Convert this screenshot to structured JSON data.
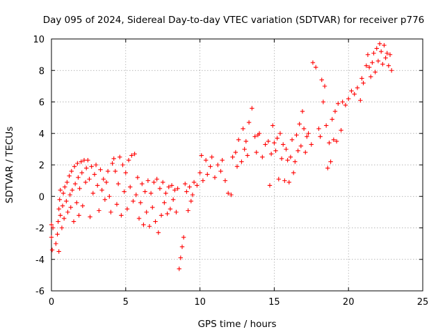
{
  "chart_data": {
    "type": "scatter",
    "title": "Day 095 of 2024, Sidereal Day-to-day VTEC variation (SDTVAR) for receiver p776",
    "xlabel": "GPS time / hours",
    "ylabel": "SDTVAR / TECUs",
    "xlim": [
      0,
      25
    ],
    "ylim": [
      -6,
      10
    ],
    "x_ticks": [
      0,
      5,
      10,
      15,
      20,
      25
    ],
    "y_ticks": [
      -6,
      -4,
      -2,
      0,
      2,
      4,
      6,
      8,
      10
    ],
    "x_tick_labels": [
      "0",
      "5",
      "10",
      "15",
      "20",
      "25"
    ],
    "y_tick_labels": [
      "-6",
      "-4",
      "-2",
      "0",
      "2",
      "4",
      "6",
      "8",
      "10"
    ],
    "grid": true,
    "marker": "plus",
    "color": "#ff0000",
    "series": [
      {
        "points": [
          [
            0.0,
            -1.8
          ],
          [
            0.0,
            -2.6
          ],
          [
            0.05,
            -3.4
          ],
          [
            0.1,
            -2.0
          ],
          [
            0.3,
            -3.0
          ],
          [
            0.4,
            -2.4
          ],
          [
            0.5,
            -3.5
          ],
          [
            0.45,
            -1.6
          ],
          [
            0.5,
            -0.8
          ],
          [
            0.55,
            -0.2
          ],
          [
            0.6,
            -1.2
          ],
          [
            0.6,
            0.4
          ],
          [
            0.7,
            -2.0
          ],
          [
            0.75,
            -0.6
          ],
          [
            0.8,
            0.2
          ],
          [
            0.85,
            -1.4
          ],
          [
            0.9,
            0.6
          ],
          [
            1.0,
            -0.3
          ],
          [
            1.05,
            0.9
          ],
          [
            1.1,
            -1.0
          ],
          [
            1.2,
            1.3
          ],
          [
            1.25,
            0.1
          ],
          [
            1.3,
            -0.7
          ],
          [
            1.35,
            1.6
          ],
          [
            1.4,
            0.4
          ],
          [
            1.5,
            -1.6
          ],
          [
            1.55,
            1.9
          ],
          [
            1.6,
            0.8
          ],
          [
            1.7,
            -0.4
          ],
          [
            1.75,
            2.1
          ],
          [
            1.8,
            1.2
          ],
          [
            1.85,
            -1.2
          ],
          [
            1.9,
            0.5
          ],
          [
            2.0,
            2.2
          ],
          [
            2.05,
            1.5
          ],
          [
            2.1,
            -0.6
          ],
          [
            2.2,
            2.3
          ],
          [
            2.3,
            0.9
          ],
          [
            2.35,
            1.8
          ],
          [
            2.45,
            2.3
          ],
          [
            2.55,
            1.1
          ],
          [
            2.6,
            -1.3
          ],
          [
            2.7,
            1.9
          ],
          [
            2.8,
            0.2
          ],
          [
            2.9,
            1.4
          ],
          [
            3.0,
            2.0
          ],
          [
            3.1,
            0.7
          ],
          [
            3.2,
            -0.9
          ],
          [
            3.3,
            1.7
          ],
          [
            3.4,
            0.4
          ],
          [
            3.5,
            1.1
          ],
          [
            3.6,
            -0.2
          ],
          [
            3.7,
            0.9
          ],
          [
            3.8,
            1.6
          ],
          [
            3.9,
            0.0
          ],
          [
            4.0,
            -1.0
          ],
          [
            4.1,
            2.1
          ],
          [
            4.2,
            2.4
          ],
          [
            4.3,
            1.6
          ],
          [
            4.4,
            -0.5
          ],
          [
            4.5,
            0.8
          ],
          [
            4.6,
            2.5
          ],
          [
            4.7,
            -1.2
          ],
          [
            4.8,
            2.0
          ],
          [
            4.9,
            0.3
          ],
          [
            5.0,
            1.5
          ],
          [
            5.1,
            -0.8
          ],
          [
            5.2,
            2.3
          ],
          [
            5.3,
            0.6
          ],
          [
            5.4,
            2.6
          ],
          [
            5.5,
            -0.3
          ],
          [
            5.6,
            2.7
          ],
          [
            5.7,
            0.1
          ],
          [
            5.8,
            1.2
          ],
          [
            5.9,
            -1.4
          ],
          [
            6.0,
            -0.4
          ],
          [
            6.1,
            0.8
          ],
          [
            6.2,
            -1.8
          ],
          [
            6.3,
            0.3
          ],
          [
            6.4,
            -1.0
          ],
          [
            6.5,
            1.0
          ],
          [
            6.6,
            -1.9
          ],
          [
            6.7,
            0.2
          ],
          [
            6.8,
            -0.7
          ],
          [
            6.9,
            0.9
          ],
          [
            7.0,
            -1.6
          ],
          [
            7.1,
            1.1
          ],
          [
            7.2,
            -2.3
          ],
          [
            7.3,
            0.5
          ],
          [
            7.4,
            -1.2
          ],
          [
            7.5,
            0.9
          ],
          [
            7.6,
            -0.4
          ],
          [
            7.7,
            0.2
          ],
          [
            7.8,
            -1.1
          ],
          [
            7.9,
            0.6
          ],
          [
            8.0,
            -0.8
          ],
          [
            8.1,
            0.7
          ],
          [
            8.2,
            -0.2
          ],
          [
            8.3,
            0.4
          ],
          [
            8.4,
            -1.0
          ],
          [
            8.5,
            0.5
          ],
          [
            8.6,
            -4.6
          ],
          [
            8.7,
            -3.9
          ],
          [
            8.8,
            -3.2
          ],
          [
            8.9,
            -2.6
          ],
          [
            9.0,
            0.8
          ],
          [
            9.1,
            0.3
          ],
          [
            9.2,
            -0.9
          ],
          [
            9.3,
            0.6
          ],
          [
            9.4,
            -0.3
          ],
          [
            9.5,
            0.1
          ],
          [
            9.6,
            0.9
          ],
          [
            9.8,
            0.7
          ],
          [
            10.0,
            1.5
          ],
          [
            10.1,
            2.6
          ],
          [
            10.2,
            1.0
          ],
          [
            10.4,
            2.3
          ],
          [
            10.5,
            1.4
          ],
          [
            10.7,
            1.9
          ],
          [
            10.8,
            2.5
          ],
          [
            11.0,
            1.2
          ],
          [
            11.2,
            2.0
          ],
          [
            11.4,
            1.6
          ],
          [
            11.5,
            2.3
          ],
          [
            11.7,
            1.0
          ],
          [
            11.9,
            0.2
          ],
          [
            12.1,
            0.1
          ],
          [
            12.2,
            2.5
          ],
          [
            12.4,
            2.8
          ],
          [
            12.5,
            1.9
          ],
          [
            12.6,
            3.6
          ],
          [
            12.8,
            2.2
          ],
          [
            12.9,
            4.3
          ],
          [
            13.0,
            3.0
          ],
          [
            13.1,
            3.5
          ],
          [
            13.2,
            2.6
          ],
          [
            13.3,
            4.7
          ],
          [
            13.5,
            5.6
          ],
          [
            13.7,
            3.8
          ],
          [
            13.8,
            2.8
          ],
          [
            13.9,
            3.9
          ],
          [
            14.0,
            4.0
          ],
          [
            14.2,
            2.5
          ],
          [
            14.4,
            3.3
          ],
          [
            14.6,
            3.5
          ],
          [
            14.7,
            0.7
          ],
          [
            14.8,
            2.7
          ],
          [
            14.9,
            4.5
          ],
          [
            15.0,
            3.4
          ],
          [
            15.1,
            2.9
          ],
          [
            15.2,
            3.7
          ],
          [
            15.3,
            1.1
          ],
          [
            15.4,
            4.0
          ],
          [
            15.5,
            2.4
          ],
          [
            15.6,
            3.3
          ],
          [
            15.7,
            1.0
          ],
          [
            15.8,
            3.0
          ],
          [
            15.9,
            2.3
          ],
          [
            16.0,
            0.9
          ],
          [
            16.1,
            2.5
          ],
          [
            16.2,
            3.6
          ],
          [
            16.3,
            1.5
          ],
          [
            16.4,
            2.2
          ],
          [
            16.5,
            3.9
          ],
          [
            16.6,
            2.9
          ],
          [
            16.7,
            4.6
          ],
          [
            16.8,
            3.2
          ],
          [
            16.9,
            5.4
          ],
          [
            17.0,
            4.3
          ],
          [
            17.1,
            2.8
          ],
          [
            17.2,
            3.8
          ],
          [
            17.3,
            4.0
          ],
          [
            17.5,
            3.3
          ],
          [
            17.6,
            8.5
          ],
          [
            17.8,
            8.2
          ],
          [
            18.0,
            4.3
          ],
          [
            18.1,
            3.8
          ],
          [
            18.2,
            7.4
          ],
          [
            18.3,
            6.0
          ],
          [
            18.4,
            7.0
          ],
          [
            18.5,
            4.5
          ],
          [
            18.6,
            1.8
          ],
          [
            18.7,
            3.4
          ],
          [
            18.8,
            2.2
          ],
          [
            18.9,
            4.9
          ],
          [
            19.0,
            3.6
          ],
          [
            19.1,
            5.4
          ],
          [
            19.2,
            3.5
          ],
          [
            19.3,
            5.9
          ],
          [
            19.5,
            4.2
          ],
          [
            19.6,
            6.0
          ],
          [
            19.8,
            5.8
          ],
          [
            20.0,
            6.2
          ],
          [
            20.2,
            6.7
          ],
          [
            20.4,
            6.5
          ],
          [
            20.6,
            6.9
          ],
          [
            20.8,
            6.1
          ],
          [
            20.9,
            7.5
          ],
          [
            21.0,
            7.2
          ],
          [
            21.2,
            8.3
          ],
          [
            21.3,
            9.0
          ],
          [
            21.4,
            8.2
          ],
          [
            21.5,
            7.6
          ],
          [
            21.6,
            8.5
          ],
          [
            21.7,
            9.1
          ],
          [
            21.8,
            7.9
          ],
          [
            21.9,
            9.4
          ],
          [
            22.0,
            8.6
          ],
          [
            22.1,
            9.7
          ],
          [
            22.2,
            9.2
          ],
          [
            22.3,
            8.4
          ],
          [
            22.4,
            9.6
          ],
          [
            22.5,
            8.8
          ],
          [
            22.6,
            9.1
          ],
          [
            22.7,
            8.3
          ],
          [
            22.8,
            9.0
          ],
          [
            22.9,
            8.0
          ]
        ]
      }
    ]
  }
}
